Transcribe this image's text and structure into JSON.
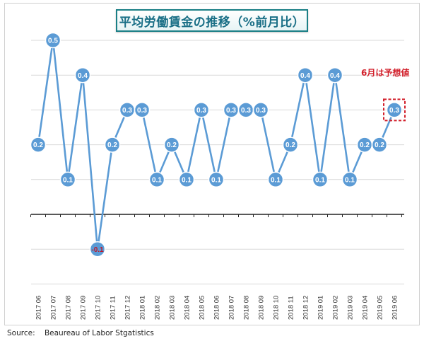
{
  "chart_data": {
    "type": "line",
    "title": "平均労働賃金の推移（%前月比）",
    "categories": [
      "2017 06",
      "2017 07",
      "2017 08",
      "2017 09",
      "2017 10",
      "2017 11",
      "2017 12",
      "2018 01",
      "2018 02",
      "2018 03",
      "2018 04",
      "2018 05",
      "2018 06",
      "2018 07",
      "2018 08",
      "2018 09",
      "2018 10",
      "2018 11",
      "2018 12",
      "2019 01",
      "2019 02",
      "2019 03",
      "2019 04",
      "2019 05",
      "2019 06"
    ],
    "values": [
      0.2,
      0.5,
      0.1,
      0.4,
      -0.1,
      0.2,
      0.3,
      0.3,
      0.1,
      0.2,
      0.1,
      0.3,
      0.1,
      0.3,
      0.3,
      0.3,
      0.1,
      0.2,
      0.4,
      0.1,
      0.4,
      0.1,
      0.2,
      0.2,
      0.3
    ],
    "value_labels": [
      "0.2",
      "0.5",
      "0.1",
      "0.4",
      "-0.1",
      "0.2",
      "0.3",
      "0.3",
      "0.1",
      "0.2",
      "0.1",
      "0.3",
      "0.1",
      "0.3",
      "0.3",
      "0.3",
      "0.1",
      "0.2",
      "0.4",
      "0.1",
      "0.4",
      "0.1",
      "0.2",
      "0.2",
      "0.3"
    ],
    "ylim": [
      -0.2,
      0.5
    ],
    "grid": "horizontal",
    "legend": "none",
    "annotation": "6月は予想値",
    "highlighted_index": 24,
    "colors": {
      "line": "#5b9bd5",
      "marker_fill": "#5b9bd5",
      "marker_stroke": "#ffffff",
      "label": "#ffffff",
      "negative_label": "#c0182a",
      "highlight": "#d21f2a",
      "title_border": "#1a7f86",
      "title_text": "#1a6f86"
    }
  },
  "footer": {
    "source": "Source:    Beaureau of Labor Stgatistics"
  }
}
